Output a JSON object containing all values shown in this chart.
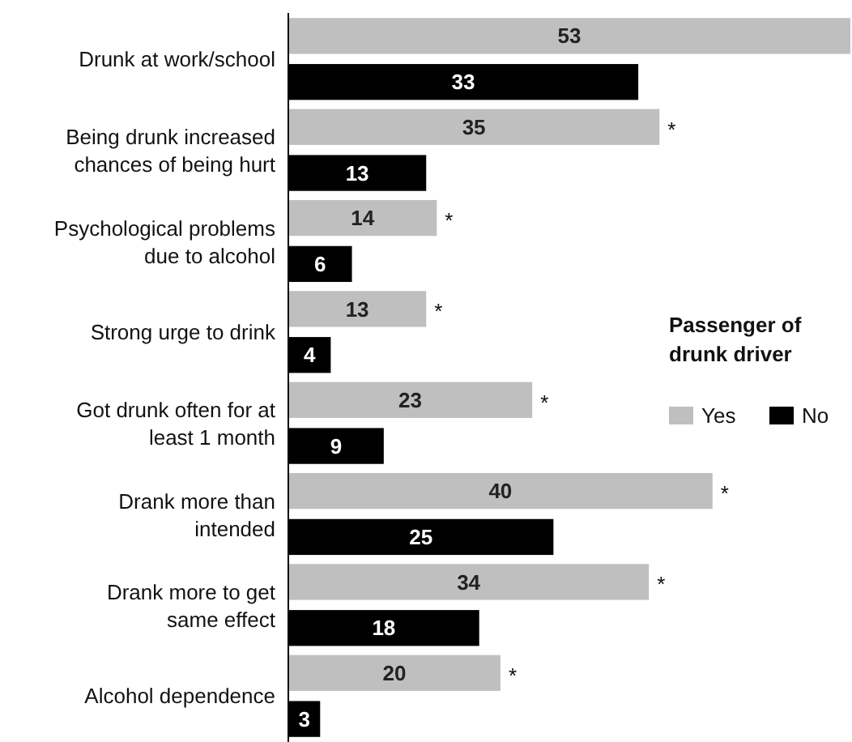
{
  "chart_data": {
    "type": "bar",
    "orientation": "horizontal",
    "categories": [
      "Drunk at work/school",
      "Being drunk increased\nchances of being hurt",
      "Psychological problems\ndue to alcohol",
      "Strong urge to drink",
      "Got drunk often for at\nleast 1 month",
      "Drank more than\nintended",
      "Drank more to get\nsame effect",
      "Alcohol dependence"
    ],
    "series": [
      {
        "name": "Yes",
        "color": "#bfbfbf",
        "values": [
          53,
          35,
          14,
          13,
          23,
          40,
          34,
          20
        ]
      },
      {
        "name": "No",
        "color": "#000000",
        "values": [
          33,
          13,
          6,
          4,
          9,
          25,
          18,
          3
        ]
      }
    ],
    "xlim": [
      0,
      53
    ],
    "tick_labels": "y",
    "data_labels": true,
    "legend": "right",
    "legend_title": "Passenger of\ndrunk driver",
    "annotations": [
      {
        "text": "*",
        "x": 35,
        "y": "Being drunk increased\nchances of being hurt"
      },
      {
        "text": "*",
        "x": 14,
        "y": "Psychological problems\ndue to alcohol"
      },
      {
        "text": "*",
        "x": 13,
        "y": "Strong urge to drink"
      },
      {
        "text": "*",
        "x": 23,
        "y": "Got drunk often for at\nleast 1 month"
      },
      {
        "text": "*",
        "x": 40,
        "y": "Drank more than\nintended"
      },
      {
        "text": "*",
        "x": 34,
        "y": "Drank more to get\nsame effect"
      },
      {
        "text": "*",
        "x": 20,
        "y": "Alcohol dependence"
      }
    ]
  }
}
